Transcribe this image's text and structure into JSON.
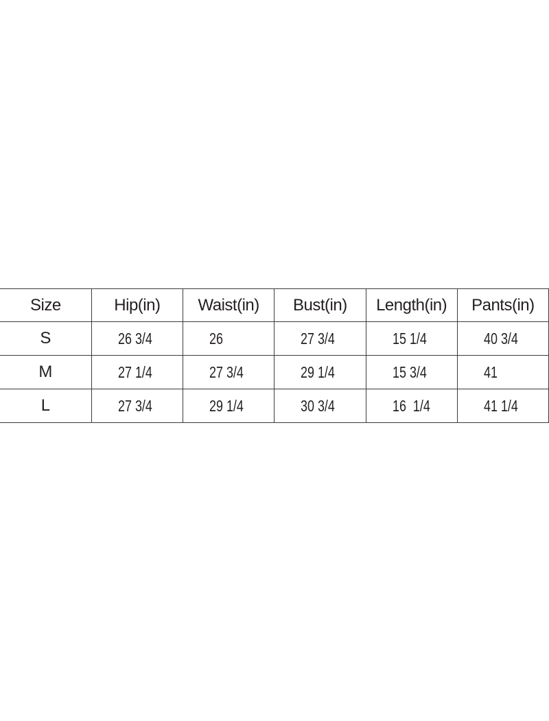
{
  "table": {
    "headers": [
      "Size",
      "Hip(in)",
      "Waist(in)",
      "Bust(in)",
      "Length(in)",
      "Pants(in)"
    ],
    "rows": [
      [
        "S",
        "26 3/4",
        "26",
        "27 3/4",
        "15 1/4",
        "40 3/4"
      ],
      [
        "M",
        "27 1/4",
        "27 3/4",
        "29 1/4",
        "15 3/4",
        "41"
      ],
      [
        "L",
        "27 3/4",
        "29 1/4",
        "30 3/4",
        "16  1/4",
        "41 1/4"
      ]
    ]
  }
}
